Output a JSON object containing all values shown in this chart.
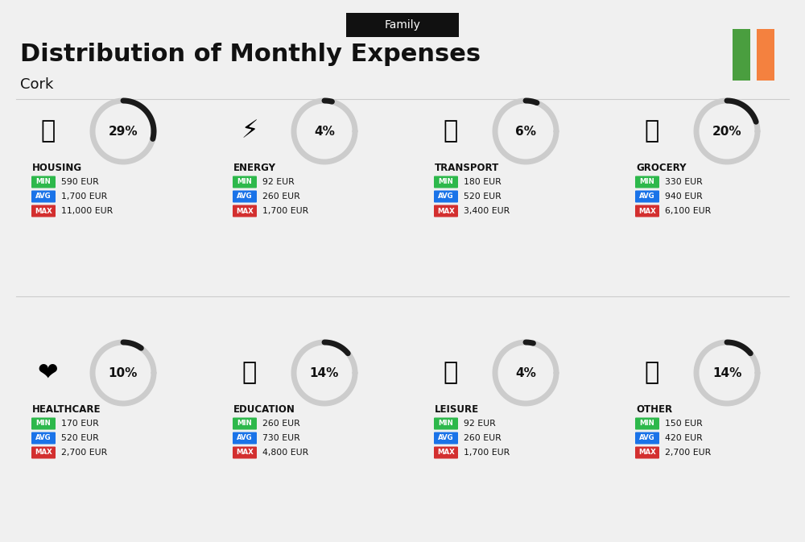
{
  "title": "Distribution of Monthly Expenses",
  "subtitle": "Family",
  "city": "Cork",
  "bg_color": "#f0f0f0",
  "categories": [
    {
      "name": "HOUSING",
      "pct": 29,
      "min": "590 EUR",
      "avg": "1,700 EUR",
      "max": "11,000 EUR",
      "emoji": "🏢",
      "row": 0,
      "col": 0
    },
    {
      "name": "ENERGY",
      "pct": 4,
      "min": "92 EUR",
      "avg": "260 EUR",
      "max": "1,700 EUR",
      "emoji": "⚡",
      "row": 0,
      "col": 1
    },
    {
      "name": "TRANSPORT",
      "pct": 6,
      "min": "180 EUR",
      "avg": "520 EUR",
      "max": "3,400 EUR",
      "emoji": "🚌",
      "row": 0,
      "col": 2
    },
    {
      "name": "GROCERY",
      "pct": 20,
      "min": "330 EUR",
      "avg": "940 EUR",
      "max": "6,100 EUR",
      "emoji": "🛒",
      "row": 0,
      "col": 3
    },
    {
      "name": "HEALTHCARE",
      "pct": 10,
      "min": "170 EUR",
      "avg": "520 EUR",
      "max": "2,700 EUR",
      "emoji": "❤️",
      "row": 1,
      "col": 0
    },
    {
      "name": "EDUCATION",
      "pct": 14,
      "min": "260 EUR",
      "avg": "730 EUR",
      "max": "4,800 EUR",
      "emoji": "🎓",
      "row": 1,
      "col": 1
    },
    {
      "name": "LEISURE",
      "pct": 4,
      "min": "92 EUR",
      "avg": "260 EUR",
      "max": "1,700 EUR",
      "emoji": "🛍️",
      "row": 1,
      "col": 2
    },
    {
      "name": "OTHER",
      "pct": 14,
      "min": "150 EUR",
      "avg": "420 EUR",
      "max": "2,700 EUR",
      "emoji": "💰",
      "row": 1,
      "col": 3
    }
  ],
  "min_color": "#2db84b",
  "avg_color": "#1a73e8",
  "max_color": "#d32f2f",
  "label_text_color": "#ffffff",
  "ireland_green": "#4a9e3f",
  "ireland_orange": "#f4813f"
}
